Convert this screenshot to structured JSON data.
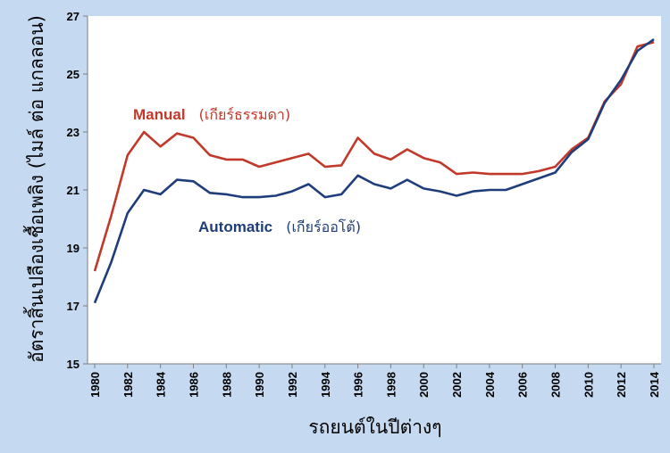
{
  "chart_data": {
    "type": "line",
    "xlabel": "รถยนต์ในปีต่างๆ",
    "ylabel": "อัตราสิ้นเปลืองเชื้อเพลิง (ไมล์ ต่อ แกลลอน)",
    "xlim": [
      1980,
      2014
    ],
    "ylim": [
      15,
      27
    ],
    "x_ticks": [
      1980,
      1982,
      1984,
      1986,
      1988,
      1990,
      1992,
      1994,
      1996,
      1998,
      2000,
      2002,
      2004,
      2006,
      2008,
      2010,
      2012,
      2014
    ],
    "y_ticks": [
      15,
      17,
      19,
      21,
      23,
      25,
      27
    ],
    "grid": "none",
    "x": [
      1980,
      1981,
      1982,
      1983,
      1984,
      1985,
      1986,
      1987,
      1988,
      1989,
      1990,
      1991,
      1992,
      1993,
      1994,
      1995,
      1996,
      1997,
      1998,
      1999,
      2000,
      2001,
      2002,
      2003,
      2004,
      2005,
      2006,
      2007,
      2008,
      2009,
      2010,
      2011,
      2012,
      2013,
      2014
    ],
    "series": [
      {
        "color": "#c0392b",
        "values": [
          18.2,
          20.1,
          22.2,
          23.0,
          22.5,
          22.95,
          22.8,
          22.2,
          22.05,
          22.05,
          21.8,
          21.95,
          22.1,
          22.25,
          21.8,
          21.85,
          22.8,
          22.25,
          22.05,
          22.4,
          22.1,
          21.95,
          21.55,
          21.6,
          21.55,
          21.55,
          21.55,
          21.65,
          21.8,
          22.4,
          22.8,
          24.05,
          24.65,
          25.95,
          26.1
        ]
      },
      {
        "color": "#1f3d7a",
        "values": [
          17.1,
          18.5,
          20.2,
          21.0,
          20.85,
          21.35,
          21.3,
          20.9,
          20.85,
          20.75,
          20.75,
          20.8,
          20.95,
          21.2,
          20.75,
          20.85,
          21.5,
          21.2,
          21.05,
          21.35,
          21.05,
          20.95,
          20.8,
          20.95,
          21.0,
          21.0,
          21.2,
          21.4,
          21.6,
          22.3,
          22.75,
          24.0,
          24.8,
          25.8,
          26.2
        ]
      }
    ],
    "annotations": [
      {
        "en": "Manual",
        "th": "(เกียร์ธรรมดา)",
        "color": "#c0392b"
      },
      {
        "en": "Automatic",
        "th": "(เกียร์ออโต้)",
        "color": "#1f3d7a"
      }
    ]
  }
}
